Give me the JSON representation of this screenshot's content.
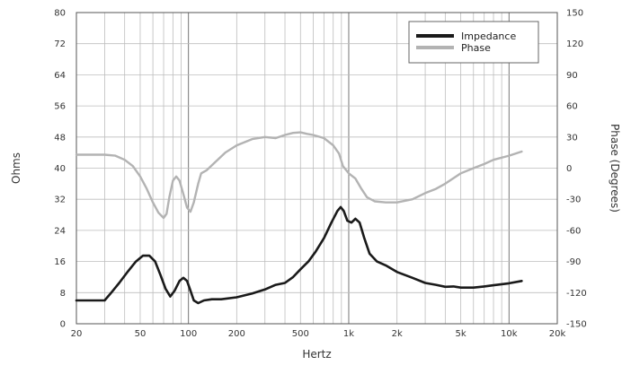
{
  "chart_data": {
    "type": "line",
    "xlabel": "Hertz",
    "ylabel_left": "Ohms",
    "ylabel_right": "Phase (Degrees)",
    "x_scale": "log",
    "xlim": [
      20,
      20000
    ],
    "ylim_left": [
      0,
      80
    ],
    "ylim_right": [
      -150,
      150
    ],
    "x_ticks": [
      {
        "v": 20,
        "label": "20"
      },
      {
        "v": 50,
        "label": "50"
      },
      {
        "v": 100,
        "label": "100"
      },
      {
        "v": 200,
        "label": "200"
      },
      {
        "v": 500,
        "label": "500"
      },
      {
        "v": 1000,
        "label": "1k"
      },
      {
        "v": 2000,
        "label": "2k"
      },
      {
        "v": 5000,
        "label": "5k"
      },
      {
        "v": 10000,
        "label": "10k"
      },
      {
        "v": 20000,
        "label": "20k"
      }
    ],
    "y_left_ticks": [
      0,
      8,
      16,
      24,
      32,
      40,
      48,
      56,
      64,
      72,
      80
    ],
    "y_right_ticks": [
      -150,
      -120,
      -90,
      -60,
      -30,
      0,
      30,
      60,
      90,
      120,
      150
    ],
    "grid": true,
    "legend_position": "top-right",
    "series": [
      {
        "name": "Impedance",
        "axis": "left",
        "color": "#1a1a1a",
        "points": [
          [
            20,
            6
          ],
          [
            25,
            6
          ],
          [
            30,
            6
          ],
          [
            33,
            8
          ],
          [
            37,
            10.5
          ],
          [
            42,
            13.5
          ],
          [
            47,
            16
          ],
          [
            52,
            17.5
          ],
          [
            57,
            17.5
          ],
          [
            62,
            16
          ],
          [
            67,
            12.5
          ],
          [
            72,
            9
          ],
          [
            77,
            7
          ],
          [
            82,
            8.5
          ],
          [
            88,
            11
          ],
          [
            93,
            11.8
          ],
          [
            98,
            11
          ],
          [
            103,
            8.5
          ],
          [
            108,
            6
          ],
          [
            115,
            5.3
          ],
          [
            125,
            6
          ],
          [
            140,
            6.3
          ],
          [
            160,
            6.3
          ],
          [
            200,
            6.8
          ],
          [
            250,
            7.8
          ],
          [
            300,
            8.8
          ],
          [
            350,
            10
          ],
          [
            400,
            10.5
          ],
          [
            450,
            12
          ],
          [
            500,
            14
          ],
          [
            560,
            16
          ],
          [
            620,
            18.5
          ],
          [
            700,
            22
          ],
          [
            780,
            26
          ],
          [
            850,
            29
          ],
          [
            890,
            30
          ],
          [
            930,
            29
          ],
          [
            980,
            26.5
          ],
          [
            1040,
            26
          ],
          [
            1100,
            27
          ],
          [
            1170,
            26
          ],
          [
            1250,
            22
          ],
          [
            1350,
            18
          ],
          [
            1500,
            16
          ],
          [
            1700,
            15
          ],
          [
            2000,
            13.3
          ],
          [
            2500,
            11.8
          ],
          [
            3000,
            10.5
          ],
          [
            3500,
            10
          ],
          [
            4000,
            9.5
          ],
          [
            4500,
            9.6
          ],
          [
            5000,
            9.3
          ],
          [
            6000,
            9.3
          ],
          [
            7000,
            9.6
          ],
          [
            8000,
            9.9
          ],
          [
            10000,
            10.4
          ],
          [
            12000,
            11
          ]
        ]
      },
      {
        "name": "Phase",
        "axis": "right",
        "color": "#b3b3b3",
        "points": [
          [
            20,
            13
          ],
          [
            25,
            13
          ],
          [
            30,
            13
          ],
          [
            35,
            12
          ],
          [
            40,
            8
          ],
          [
            45,
            2
          ],
          [
            50,
            -8
          ],
          [
            55,
            -20
          ],
          [
            60,
            -33
          ],
          [
            65,
            -43
          ],
          [
            70,
            -48
          ],
          [
            73,
            -44
          ],
          [
            76,
            -28
          ],
          [
            80,
            -12
          ],
          [
            84,
            -8
          ],
          [
            88,
            -12
          ],
          [
            93,
            -25
          ],
          [
            98,
            -38
          ],
          [
            103,
            -42
          ],
          [
            108,
            -33
          ],
          [
            115,
            -15
          ],
          [
            120,
            -5
          ],
          [
            130,
            -2
          ],
          [
            145,
            5
          ],
          [
            170,
            15
          ],
          [
            200,
            22
          ],
          [
            250,
            28
          ],
          [
            300,
            30
          ],
          [
            350,
            29
          ],
          [
            400,
            32
          ],
          [
            450,
            34
          ],
          [
            500,
            34.5
          ],
          [
            550,
            33
          ],
          [
            600,
            32
          ],
          [
            700,
            29
          ],
          [
            800,
            22
          ],
          [
            870,
            14
          ],
          [
            920,
            2
          ],
          [
            1000,
            -5
          ],
          [
            1100,
            -10
          ],
          [
            1200,
            -20
          ],
          [
            1300,
            -28
          ],
          [
            1450,
            -32
          ],
          [
            1700,
            -33
          ],
          [
            2000,
            -33
          ],
          [
            2500,
            -30
          ],
          [
            3000,
            -24
          ],
          [
            3500,
            -20
          ],
          [
            4000,
            -15
          ],
          [
            5000,
            -5
          ],
          [
            6000,
            0
          ],
          [
            7000,
            4
          ],
          [
            8000,
            8
          ],
          [
            10000,
            12
          ],
          [
            12000,
            16
          ]
        ]
      }
    ]
  }
}
